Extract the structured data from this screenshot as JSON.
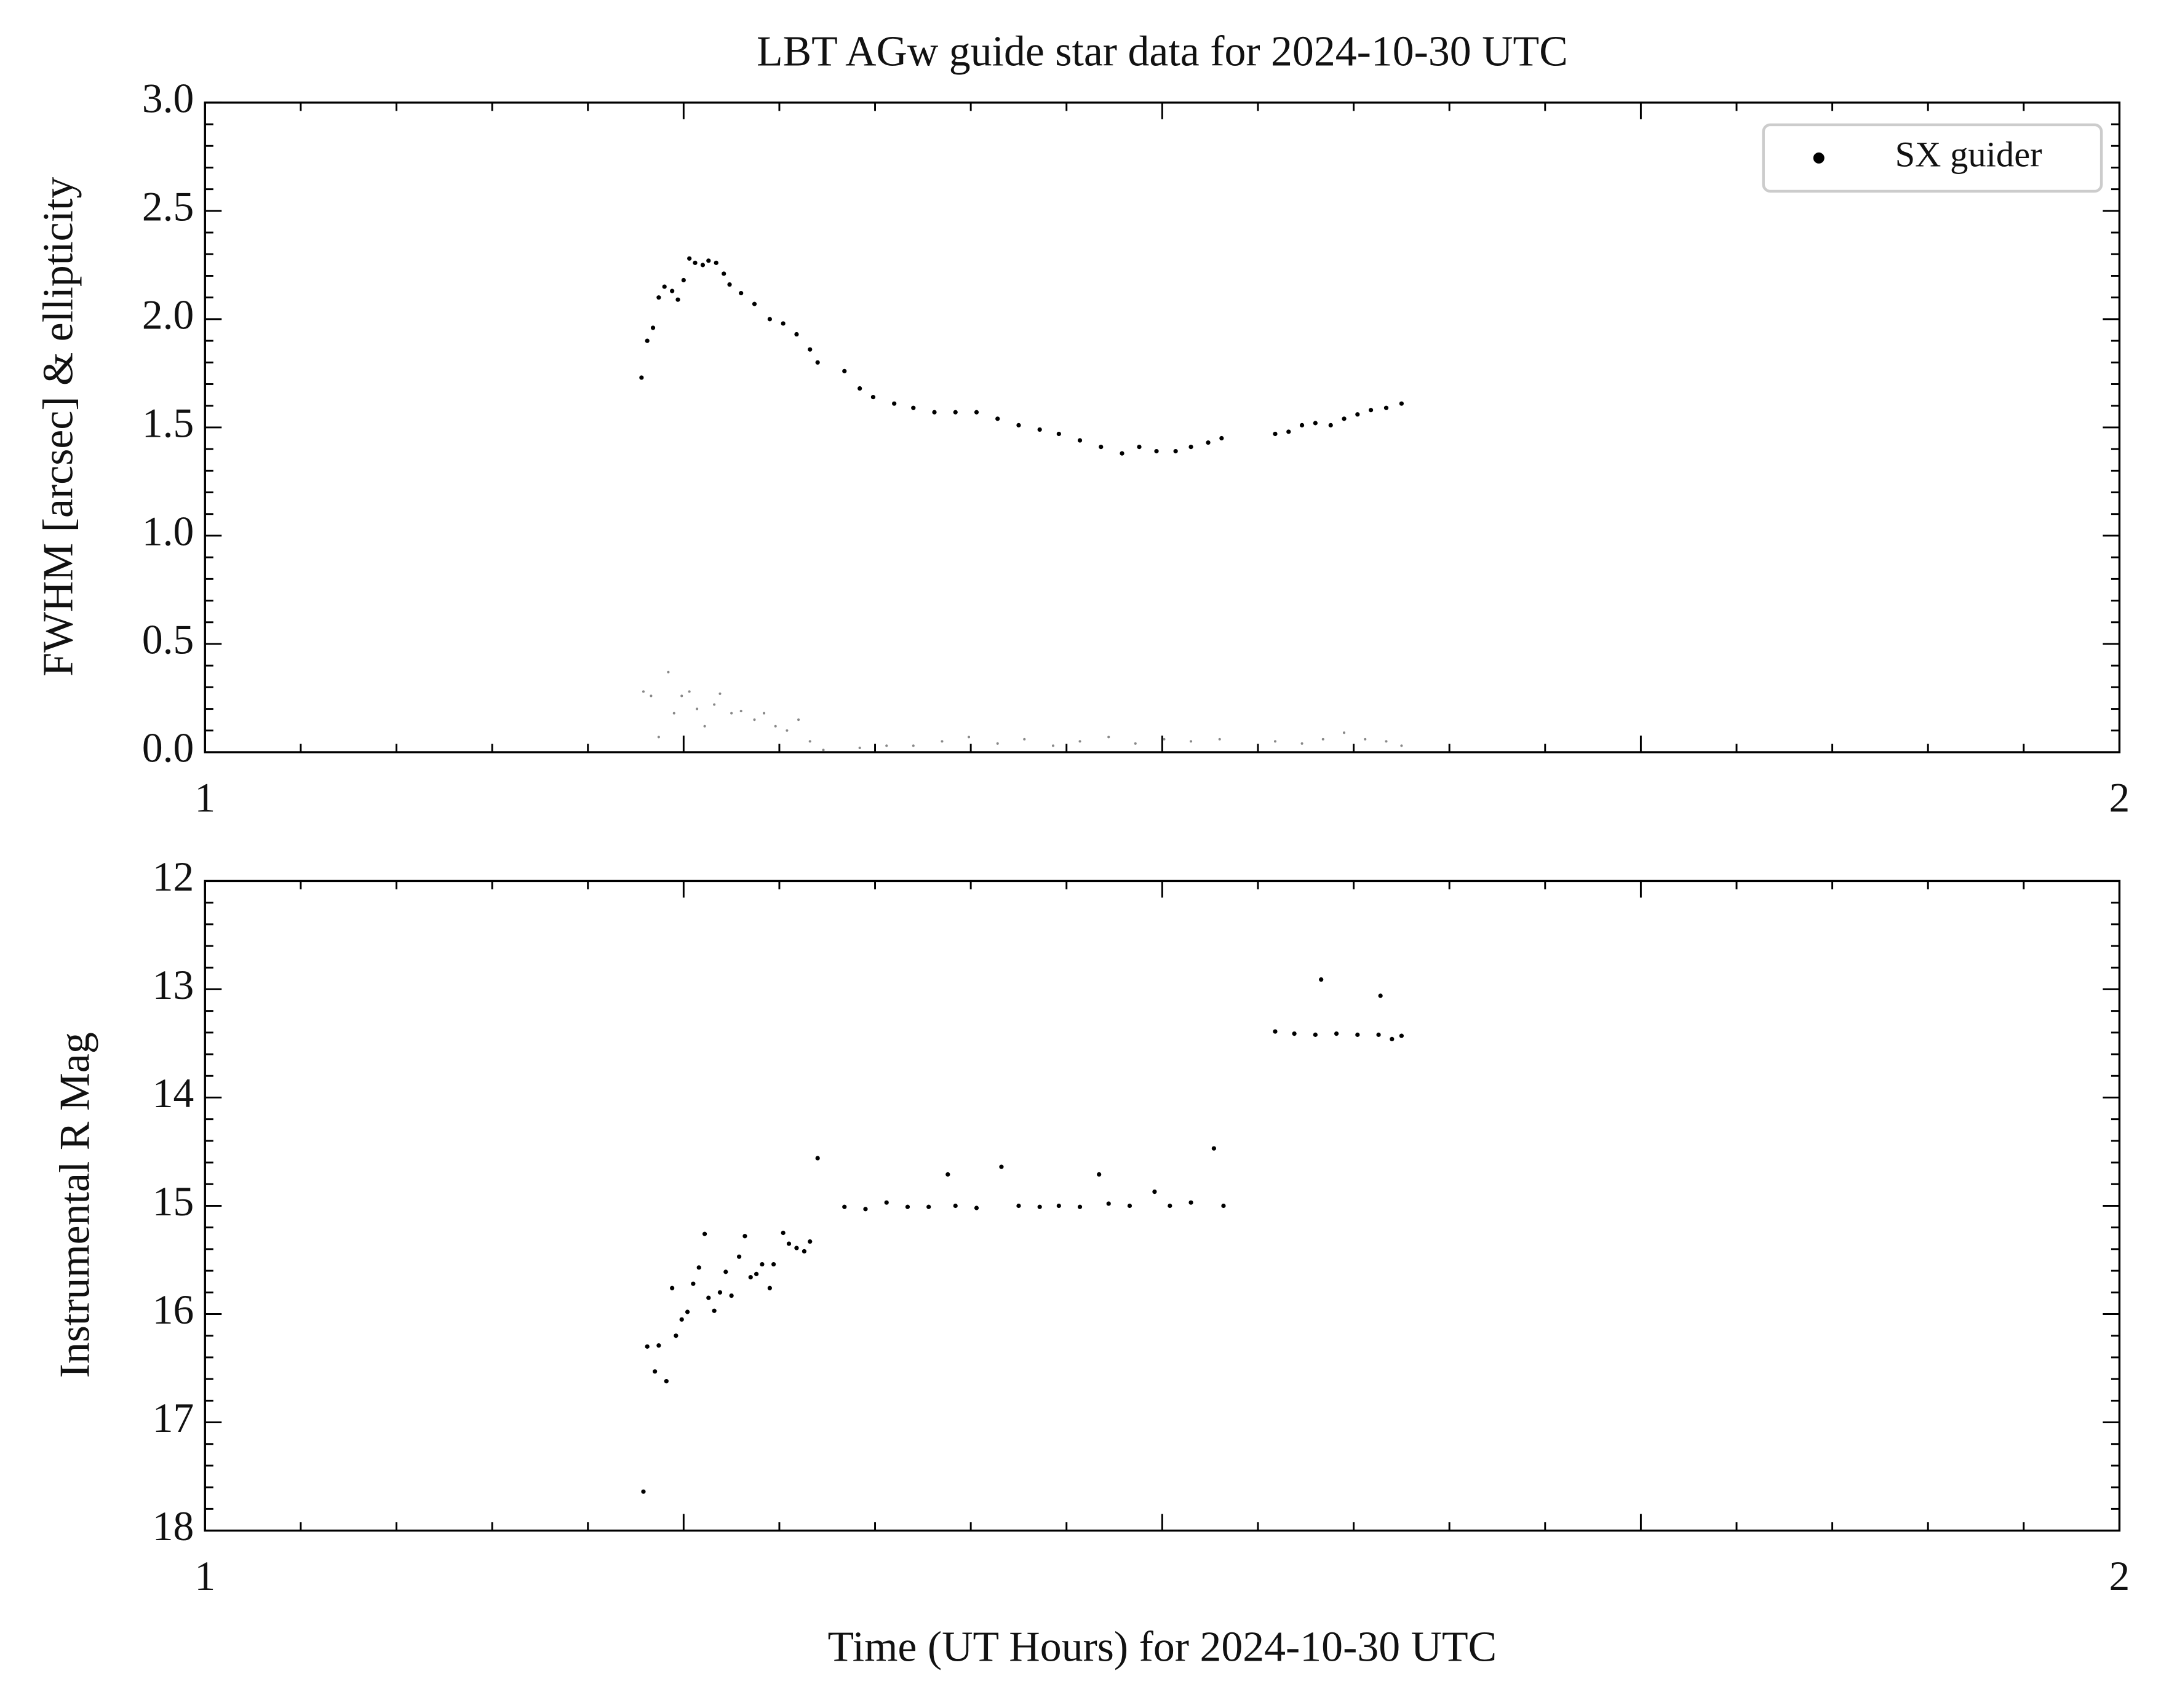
{
  "chart_data": [
    {
      "type": "scatter",
      "title": "LBT AGw guide star data for 2024-10-30 UTC",
      "ylabel": "FWHM [arcsec] & ellipticity",
      "xlim": [
        1,
        2
      ],
      "xticks": [
        1,
        2
      ],
      "ylim": [
        0,
        3
      ],
      "yticks": [
        {
          "value": 0,
          "label": "0.0"
        },
        0.5,
        {
          "value": 1,
          "label": "1.0"
        },
        1.5,
        {
          "value": 2,
          "label": "2.0"
        },
        2.5,
        {
          "value": 3,
          "label": "3.0"
        }
      ],
      "legend": "upper right",
      "series": [
        {
          "name": "SX guider",
          "color": "#000000",
          "x": [
            1.228,
            1.231,
            1.234,
            1.237,
            1.24,
            1.244,
            1.247,
            1.25,
            1.253,
            1.256,
            1.26,
            1.263,
            1.267,
            1.271,
            1.274,
            1.28,
            1.287,
            1.295,
            1.302,
            1.309,
            1.316,
            1.32,
            1.334,
            1.342,
            1.349,
            1.36,
            1.37,
            1.381,
            1.392,
            1.403,
            1.414,
            1.425,
            1.436,
            1.446,
            1.457,
            1.468,
            1.479,
            1.488,
            1.497,
            1.507,
            1.515,
            1.524,
            1.531,
            1.559,
            1.566,
            1.573,
            1.58,
            1.588,
            1.595,
            1.602,
            1.609,
            1.617,
            1.625
          ],
          "values": [
            1.73,
            1.9,
            1.96,
            2.1,
            2.15,
            2.13,
            2.09,
            2.18,
            2.28,
            2.26,
            2.25,
            2.27,
            2.26,
            2.21,
            2.16,
            2.12,
            2.07,
            2.0,
            1.98,
            1.93,
            1.86,
            1.8,
            1.76,
            1.68,
            1.64,
            1.61,
            1.59,
            1.57,
            1.57,
            1.57,
            1.54,
            1.51,
            1.49,
            1.47,
            1.44,
            1.41,
            1.38,
            1.41,
            1.39,
            1.39,
            1.41,
            1.43,
            1.45,
            1.47,
            1.48,
            1.51,
            1.52,
            1.51,
            1.54,
            1.56,
            1.58,
            1.59,
            1.61
          ]
        },
        {
          "color": "#888888",
          "x": [
            1.229,
            1.233,
            1.237,
            1.242,
            1.245,
            1.249,
            1.253,
            1.257,
            1.261,
            1.266,
            1.269,
            1.275,
            1.28,
            1.287,
            1.292,
            1.298,
            1.304,
            1.31,
            1.316,
            1.323,
            1.342,
            1.356,
            1.37,
            1.385,
            1.399,
            1.414,
            1.428,
            1.443,
            1.457,
            1.472,
            1.486,
            1.501,
            1.515,
            1.53,
            1.559,
            1.573,
            1.584,
            1.595,
            1.606,
            1.617,
            1.625
          ],
          "values": [
            0.28,
            0.26,
            0.07,
            0.37,
            0.18,
            0.26,
            0.28,
            0.2,
            0.12,
            0.22,
            0.27,
            0.18,
            0.19,
            0.15,
            0.18,
            0.12,
            0.1,
            0.15,
            0.05,
            0.01,
            0.02,
            0.03,
            0.03,
            0.05,
            0.07,
            0.04,
            0.06,
            0.03,
            0.05,
            0.07,
            0.04,
            0.06,
            0.05,
            0.06,
            0.05,
            0.04,
            0.06,
            0.09,
            0.06,
            0.05,
            0.03
          ]
        }
      ]
    },
    {
      "type": "scatter",
      "ylabel": "Instrumental R Mag",
      "xlabel": "Time (UT Hours) for 2024-10-30 UTC",
      "xlim": [
        1,
        2
      ],
      "xticks": [
        1,
        2
      ],
      "ylim": [
        18,
        12
      ],
      "yticks": [
        12,
        13,
        14,
        15,
        16,
        17,
        18
      ],
      "series": [
        {
          "color": "#000000",
          "x": [
            1.229,
            1.231,
            1.235,
            1.237,
            1.241,
            1.244,
            1.246,
            1.249,
            1.252,
            1.255,
            1.258,
            1.261,
            1.263,
            1.266,
            1.269,
            1.272,
            1.275,
            1.279,
            1.282,
            1.285,
            1.288,
            1.291,
            1.295,
            1.297,
            1.302,
            1.305,
            1.309,
            1.313,
            1.316,
            1.32,
            1.334,
            1.345,
            1.356,
            1.367,
            1.378,
            1.388,
            1.392,
            1.403,
            1.416,
            1.425,
            1.436,
            1.446,
            1.457,
            1.467,
            1.472,
            1.483,
            1.496,
            1.504,
            1.515,
            1.527,
            1.532,
            1.559,
            1.569,
            1.58,
            1.583,
            1.591,
            1.602,
            1.613,
            1.614,
            1.62,
            1.625
          ],
          "values": [
            17.64,
            16.3,
            16.53,
            16.29,
            16.62,
            15.76,
            16.2,
            16.05,
            15.98,
            15.72,
            15.57,
            15.26,
            15.85,
            15.97,
            15.8,
            15.61,
            15.83,
            15.47,
            15.28,
            15.66,
            15.63,
            15.54,
            15.76,
            15.54,
            15.25,
            15.35,
            15.39,
            15.42,
            15.33,
            14.56,
            15.01,
            15.03,
            14.97,
            15.01,
            15.01,
            14.71,
            15.0,
            15.02,
            14.64,
            15.0,
            15.01,
            15.0,
            15.01,
            14.71,
            14.98,
            15.0,
            14.87,
            15.0,
            14.97,
            14.47,
            15.0,
            13.39,
            13.41,
            13.42,
            12.91,
            13.41,
            13.42,
            13.42,
            13.06,
            13.46,
            13.43
          ]
        }
      ]
    }
  ]
}
